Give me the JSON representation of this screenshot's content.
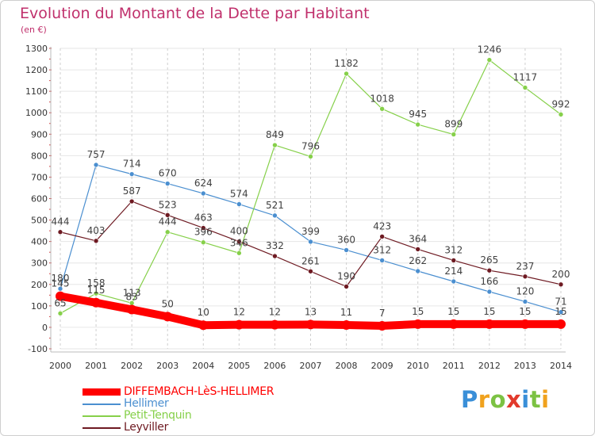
{
  "header": {
    "title": "Evolution du Montant de la Dette par Habitant",
    "unit": "(en €)"
  },
  "brand": {
    "letters": [
      "P",
      "r",
      "o",
      "x",
      "i",
      "t",
      "i"
    ],
    "colors": [
      "#3a8fd8",
      "#f0a21e",
      "#7cc243",
      "#e23a2c",
      "#3a8fd8",
      "#7cc243",
      "#f0a21e"
    ]
  },
  "chart_data": {
    "type": "line",
    "title": "Evolution du Montant de la Dette par Habitant",
    "ylabel": "(en €)",
    "xlabel": "",
    "x": [
      "2000",
      "2001",
      "2002",
      "2003",
      "2004",
      "2005",
      "2006",
      "2007",
      "2008",
      "2009",
      "2010",
      "2011",
      "2012",
      "2013",
      "2014"
    ],
    "yticks": [
      -100,
      0,
      100,
      200,
      300,
      400,
      500,
      600,
      700,
      800,
      900,
      1000,
      1100,
      1200,
      1300
    ],
    "ylim": [
      -100,
      1300
    ],
    "grid": "vertical dashed, horizontal light",
    "legend_position": "bottom-left",
    "series": [
      {
        "name": "DIFFEMBACH-LèS-HELLIMER",
        "color": "#ff0000",
        "width": "thick",
        "values": [
          145,
          115,
          83,
          50,
          10,
          12,
          12,
          13,
          11,
          7,
          15,
          15,
          15,
          15,
          15
        ]
      },
      {
        "name": "Hellimer",
        "color": "#4b8fd0",
        "width": "thin",
        "values": [
          180,
          757,
          714,
          670,
          624,
          574,
          521,
          399,
          360,
          312,
          262,
          214,
          166,
          120,
          71
        ]
      },
      {
        "name": "Petit-Tenquin",
        "color": "#86d04a",
        "width": "thin",
        "values": [
          65,
          158,
          113,
          444,
          396,
          346,
          849,
          796,
          1182,
          1018,
          945,
          899,
          1246,
          1117,
          992
        ]
      },
      {
        "name": "Leyviller",
        "color": "#6e1a22",
        "width": "thin",
        "values": [
          444,
          403,
          587,
          523,
          463,
          400,
          332,
          261,
          190,
          423,
          364,
          312,
          265,
          237,
          200
        ]
      }
    ]
  }
}
